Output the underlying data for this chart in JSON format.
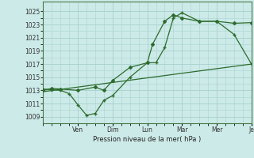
{
  "background_color": "#cceae8",
  "grid_color": "#aad4d0",
  "line_color": "#2d6b2d",
  "ylabel": "Pression niveau de la mer( hPa )",
  "ylim": [
    1008,
    1026.5
  ],
  "yticks": [
    1009,
    1011,
    1013,
    1015,
    1017,
    1019,
    1021,
    1023,
    1025
  ],
  "xlim": [
    0,
    12
  ],
  "x_major_ticks": [
    2,
    4,
    6,
    8,
    10,
    12
  ],
  "x_major_labels": [
    "Ven",
    "Dim",
    "Lun",
    "Mar",
    "Mer",
    "Je"
  ],
  "line1_x": [
    0,
    0.5,
    1,
    1.5,
    2,
    2.5,
    3,
    3.5,
    4,
    5,
    6,
    6.5,
    7,
    7.5,
    8,
    9,
    10,
    11,
    12
  ],
  "line1_y": [
    1013.2,
    1013.1,
    1013.0,
    1012.5,
    1010.8,
    1009.2,
    1009.5,
    1011.5,
    1012.2,
    1015.0,
    1017.2,
    1017.2,
    1019.5,
    1024.0,
    1024.8,
    1023.5,
    1023.5,
    1021.5,
    1017.0
  ],
  "line2_x": [
    0,
    0.5,
    1,
    2,
    3,
    3.5,
    4,
    5,
    6,
    6.3,
    7,
    7.5,
    8,
    9,
    10,
    11,
    12
  ],
  "line2_y": [
    1013.0,
    1013.3,
    1013.2,
    1013.0,
    1013.5,
    1013.0,
    1014.5,
    1016.5,
    1017.2,
    1020.0,
    1023.5,
    1024.5,
    1024.0,
    1023.5,
    1023.5,
    1023.2,
    1023.3
  ],
  "line3_x": [
    0,
    12
  ],
  "line3_y": [
    1012.8,
    1017.0
  ]
}
